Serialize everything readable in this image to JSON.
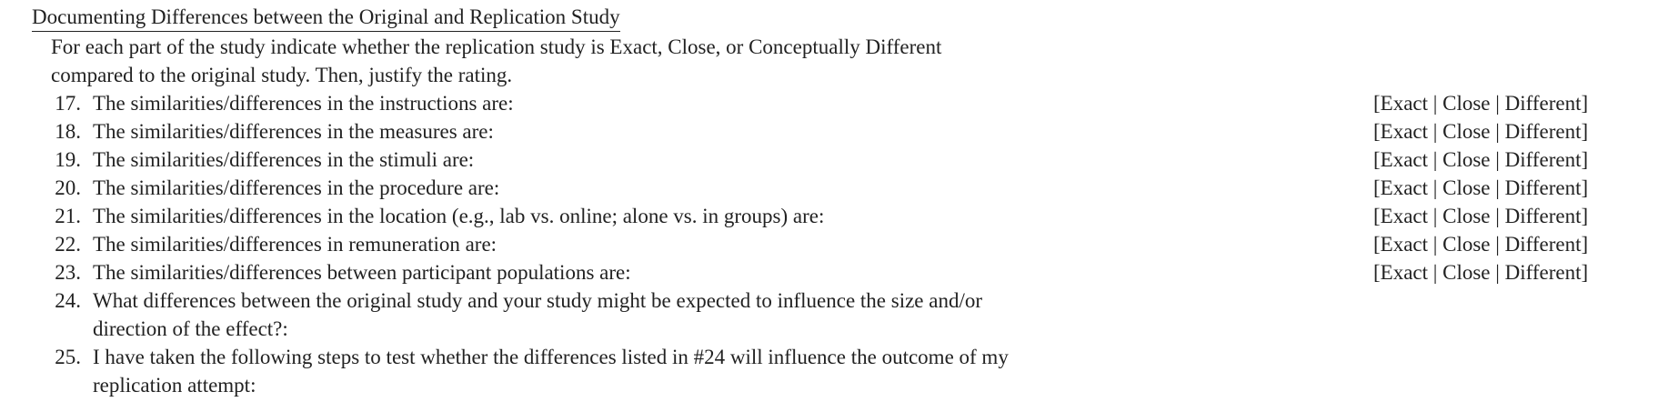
{
  "header": {
    "title": "Documenting Differences between the Original and Replication Study"
  },
  "intro": [
    "For each part of the study indicate whether the replication study is Exact, Close, or Conceptually Different",
    "compared to the original study. Then, justify the rating."
  ],
  "items": [
    {
      "number": "17.",
      "text": [
        "The similarities/differences in the instructions are:"
      ],
      "rating": "[Exact | Close | Different]"
    },
    {
      "number": "18.",
      "text": [
        "The similarities/differences in the measures are:"
      ],
      "rating": "[Exact | Close | Different]"
    },
    {
      "number": "19.",
      "text": [
        "The similarities/differences in the stimuli are:"
      ],
      "rating": "[Exact | Close | Different]"
    },
    {
      "number": "20.",
      "text": [
        "The similarities/differences in the procedure are:"
      ],
      "rating": "[Exact | Close | Different]"
    },
    {
      "number": "21.",
      "text": [
        "The similarities/differences in the location (e.g., lab vs. online; alone vs. in groups) are:"
      ],
      "rating": "[Exact | Close | Different]"
    },
    {
      "number": "22.",
      "text": [
        "The similarities/differences in remuneration are:"
      ],
      "rating": "[Exact | Close | Different]"
    },
    {
      "number": "23.",
      "text": [
        "The similarities/differences between participant populations are:"
      ],
      "rating": "[Exact | Close | Different]"
    },
    {
      "number": "24.",
      "text": [
        "What differences between the original study and your study might be expected to influence the size and/or",
        "direction of the effect?:"
      ]
    },
    {
      "number": "25.",
      "text": [
        "I have taken the following steps to test whether the differences listed in #24 will influence the outcome of my",
        "replication attempt:"
      ]
    }
  ]
}
